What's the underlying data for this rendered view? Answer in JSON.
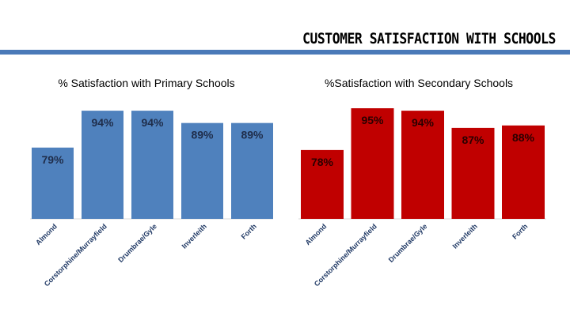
{
  "page": {
    "title": "CUSTOMER SATISFACTION WITH SCHOOLS",
    "rule_color": "#4a7ab8"
  },
  "chart_data": [
    {
      "type": "bar",
      "title": "% Satisfaction with Primary Schools",
      "categories": [
        "Almond",
        "Corstorphine/Murrayfield",
        "Drumbrae/Gyle",
        "Inverleith",
        "Forth"
      ],
      "values": [
        79,
        94,
        94,
        89,
        89
      ],
      "value_labels": [
        "79%",
        "94%",
        "94%",
        "89%",
        "89%"
      ],
      "color": "#4f81bd",
      "ylim": [
        50,
        95
      ],
      "grid": false,
      "legend": "none"
    },
    {
      "type": "bar",
      "title": "%Satisfaction with Secondary Schools",
      "categories": [
        "Almond",
        "Corstorphine/Murrayfield",
        "Drumbrae/Gyle",
        "Inverleith",
        "Forth"
      ],
      "values": [
        78,
        95,
        94,
        87,
        88
      ],
      "value_labels": [
        "78%",
        "95%",
        "94%",
        "87%",
        "88%"
      ],
      "color": "#c00000",
      "ylim": [
        50,
        95
      ],
      "grid": false,
      "legend": "none"
    }
  ]
}
